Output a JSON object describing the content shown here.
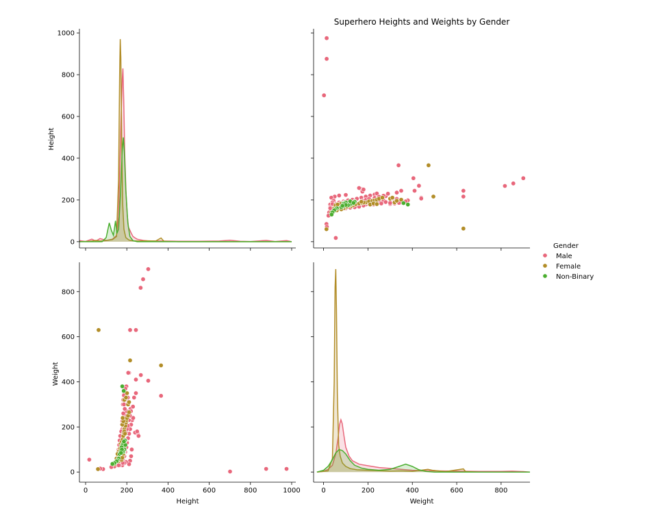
{
  "chart_data": {
    "type": "scatter",
    "title": "Superhero Heights and Weights by Gender",
    "variables": [
      "Height",
      "Weight"
    ],
    "legend": {
      "title": "Gender",
      "placement": "right",
      "entries": [
        {
          "name": "Male",
          "color": "#e8677b"
        },
        {
          "name": "Female",
          "color": "#b28d28"
        },
        {
          "name": "Non-Binary",
          "color": "#4aae2f"
        }
      ]
    },
    "axes": {
      "Height": {
        "range": [
          -30,
          1020
        ],
        "ticks": [
          0,
          200,
          400,
          600,
          800,
          1000
        ]
      },
      "Weight": {
        "range": [
          -45,
          930
        ],
        "ticks": [
          0,
          200,
          400,
          600,
          800
        ]
      }
    },
    "scatter": {
      "Male": [
        [
          185,
          200
        ],
        [
          188,
          215
        ],
        [
          178,
          190
        ],
        [
          180,
          160
        ],
        [
          191,
          210
        ],
        [
          193,
          250
        ],
        [
          170,
          130
        ],
        [
          175,
          155
        ],
        [
          183,
          185
        ],
        [
          188,
          195
        ],
        [
          196,
          220
        ],
        [
          198,
          270
        ],
        [
          203,
          300
        ],
        [
          201,
          320
        ],
        [
          205,
          330
        ],
        [
          208,
          310
        ],
        [
          213,
          260
        ],
        [
          218,
          280
        ],
        [
          226,
          230
        ],
        [
          231,
          240
        ],
        [
          235,
          330
        ],
        [
          244,
          350
        ],
        [
          244,
          410
        ],
        [
          252,
          170
        ],
        [
          257,
          160
        ],
        [
          268,
          430
        ],
        [
          211,
          440
        ],
        [
          207,
          440
        ],
        [
          198,
          380
        ],
        [
          193,
          370
        ],
        [
          188,
          350
        ],
        [
          186,
          340
        ],
        [
          183,
          320
        ],
        [
          181,
          300
        ],
        [
          183,
          260
        ],
        [
          186,
          240
        ],
        [
          178,
          225
        ],
        [
          176,
          210
        ],
        [
          173,
          180
        ],
        [
          168,
          160
        ],
        [
          165,
          140
        ],
        [
          163,
          120
        ],
        [
          160,
          100
        ],
        [
          163,
          80
        ],
        [
          168,
          60
        ],
        [
          173,
          40
        ],
        [
          178,
          30
        ],
        [
          183,
          50
        ],
        [
          188,
          70
        ],
        [
          193,
          90
        ],
        [
          198,
          110
        ],
        [
          201,
          130
        ],
        [
          206,
          150
        ],
        [
          211,
          170
        ],
        [
          216,
          190
        ],
        [
          221,
          210
        ],
        [
          224,
          100
        ],
        [
          221,
          70
        ],
        [
          216,
          50
        ],
        [
          211,
          35
        ],
        [
          196,
          45
        ],
        [
          188,
          40
        ],
        [
          180,
          40
        ],
        [
          165,
          30
        ],
        [
          160,
          30
        ],
        [
          140,
          25
        ],
        [
          125,
          22
        ],
        [
          85,
          13
        ],
        [
          71,
          15
        ],
        [
          18,
          55
        ],
        [
          216,
          630
        ],
        [
          244,
          630
        ],
        [
          267,
          817
        ],
        [
          279,
          855
        ],
        [
          304,
          900
        ],
        [
          304,
          405
        ],
        [
          366,
          338
        ],
        [
          701,
          2
        ],
        [
          876,
          14
        ],
        [
          975,
          14
        ],
        [
          185,
          80
        ],
        [
          190,
          95
        ],
        [
          175,
          110
        ],
        [
          178,
          135
        ],
        [
          182,
          150
        ],
        [
          195,
          175
        ],
        [
          200,
          190
        ],
        [
          205,
          205
        ],
        [
          210,
          230
        ],
        [
          215,
          250
        ],
        [
          220,
          270
        ],
        [
          230,
          290
        ],
        [
          240,
          175
        ],
        [
          250,
          180
        ],
        [
          190,
          280
        ],
        [
          186,
          300
        ]
      ],
      "Female": [
        [
          170,
          55
        ],
        [
          165,
          52
        ],
        [
          168,
          58
        ],
        [
          173,
          62
        ],
        [
          175,
          60
        ],
        [
          178,
          65
        ],
        [
          180,
          70
        ],
        [
          183,
          80
        ],
        [
          163,
          50
        ],
        [
          160,
          48
        ],
        [
          158,
          54
        ],
        [
          185,
          90
        ],
        [
          188,
          110
        ],
        [
          170,
          125
        ],
        [
          175,
          135
        ],
        [
          180,
          145
        ],
        [
          183,
          160
        ],
        [
          185,
          175
        ],
        [
          188,
          190
        ],
        [
          193,
          205
        ],
        [
          196,
          220
        ],
        [
          198,
          230
        ],
        [
          201,
          240
        ],
        [
          206,
          250
        ],
        [
          211,
          265
        ],
        [
          165,
          74
        ],
        [
          168,
          58
        ],
        [
          170,
          63
        ],
        [
          175,
          54
        ],
        [
          178,
          63
        ],
        [
          216,
          495
        ],
        [
          366,
          473
        ],
        [
          63,
          630
        ],
        [
          60,
          13
        ],
        [
          178,
          210
        ],
        [
          183,
          225
        ],
        [
          188,
          180
        ],
        [
          191,
          170
        ],
        [
          193,
          140
        ],
        [
          170,
          95
        ],
        [
          165,
          100
        ],
        [
          160,
          90
        ],
        [
          155,
          80
        ],
        [
          150,
          60
        ],
        [
          145,
          45
        ],
        [
          140,
          35
        ],
        [
          188,
          320
        ],
        [
          196,
          330
        ],
        [
          201,
          350
        ],
        [
          206,
          300
        ],
        [
          211,
          310
        ],
        [
          180,
          240
        ],
        [
          173,
          115
        ],
        [
          168,
          105
        ]
      ],
      "Non-Binary": [
        [
          183,
          130
        ],
        [
          185,
          360
        ],
        [
          178,
          380
        ],
        [
          183,
          90
        ],
        [
          188,
          100
        ],
        [
          180,
          120
        ],
        [
          175,
          110
        ],
        [
          170,
          90
        ],
        [
          165,
          80
        ],
        [
          160,
          60
        ],
        [
          155,
          52
        ],
        [
          150,
          48
        ],
        [
          140,
          40
        ],
        [
          130,
          36
        ],
        [
          191,
          140
        ],
        [
          193,
          120
        ],
        [
          186,
          135
        ],
        [
          181,
          95
        ],
        [
          176,
          100
        ],
        [
          172,
          85
        ]
      ]
    },
    "kde": {
      "Height": {
        "Male": [
          [
            -30,
            5
          ],
          [
            0,
            1
          ],
          [
            30,
            12
          ],
          [
            50,
            3
          ],
          [
            70,
            15
          ],
          [
            100,
            6
          ],
          [
            130,
            12
          ],
          [
            150,
            30
          ],
          [
            160,
            120
          ],
          [
            170,
            520
          ],
          [
            178,
            780
          ],
          [
            181,
            830
          ],
          [
            185,
            680
          ],
          [
            190,
            420
          ],
          [
            196,
            240
          ],
          [
            202,
            130
          ],
          [
            208,
            70
          ],
          [
            215,
            55
          ],
          [
            222,
            40
          ],
          [
            230,
            25
          ],
          [
            240,
            18
          ],
          [
            250,
            12
          ],
          [
            260,
            10
          ],
          [
            280,
            6
          ],
          [
            300,
            4
          ],
          [
            350,
            3
          ],
          [
            450,
            2
          ],
          [
            550,
            2
          ],
          [
            650,
            3
          ],
          [
            700,
            7
          ],
          [
            750,
            2
          ],
          [
            800,
            1
          ],
          [
            876,
            6
          ],
          [
            920,
            1
          ],
          [
            975,
            5
          ],
          [
            1000,
            0
          ]
        ],
        "Female": [
          [
            -30,
            0
          ],
          [
            20,
            2
          ],
          [
            50,
            6
          ],
          [
            70,
            3
          ],
          [
            100,
            5
          ],
          [
            130,
            10
          ],
          [
            150,
            25
          ],
          [
            160,
            300
          ],
          [
            165,
            800
          ],
          [
            168,
            970
          ],
          [
            171,
            880
          ],
          [
            175,
            500
          ],
          [
            180,
            180
          ],
          [
            186,
            60
          ],
          [
            195,
            20
          ],
          [
            210,
            8
          ],
          [
            230,
            4
          ],
          [
            260,
            3
          ],
          [
            300,
            4
          ],
          [
            340,
            3
          ],
          [
            366,
            18
          ],
          [
            380,
            2
          ],
          [
            450,
            0
          ],
          [
            1000,
            0
          ]
        ],
        "Non-Binary": [
          [
            -30,
            0
          ],
          [
            80,
            0
          ],
          [
            100,
            20
          ],
          [
            115,
            90
          ],
          [
            125,
            55
          ],
          [
            135,
            30
          ],
          [
            145,
            100
          ],
          [
            152,
            40
          ],
          [
            160,
            60
          ],
          [
            170,
            250
          ],
          [
            178,
            440
          ],
          [
            183,
            500
          ],
          [
            188,
            430
          ],
          [
            195,
            250
          ],
          [
            205,
            90
          ],
          [
            215,
            25
          ],
          [
            230,
            5
          ],
          [
            250,
            0
          ],
          [
            1000,
            0
          ]
        ]
      },
      "Weight": {
        "Male": [
          [
            -30,
            0
          ],
          [
            0,
            3
          ],
          [
            20,
            12
          ],
          [
            40,
            30
          ],
          [
            55,
            80
          ],
          [
            65,
            150
          ],
          [
            72,
            210
          ],
          [
            78,
            232
          ],
          [
            84,
            215
          ],
          [
            92,
            160
          ],
          [
            100,
            110
          ],
          [
            115,
            70
          ],
          [
            130,
            50
          ],
          [
            160,
            35
          ],
          [
            200,
            28
          ],
          [
            250,
            20
          ],
          [
            300,
            16
          ],
          [
            350,
            12
          ],
          [
            400,
            8
          ],
          [
            450,
            6
          ],
          [
            500,
            5
          ],
          [
            600,
            4
          ],
          [
            700,
            3
          ],
          [
            800,
            3
          ],
          [
            850,
            4
          ],
          [
            900,
            2
          ],
          [
            930,
            0
          ]
        ],
        "Female": [
          [
            -30,
            0
          ],
          [
            20,
            5
          ],
          [
            40,
            60
          ],
          [
            48,
            400
          ],
          [
            52,
            820
          ],
          [
            55,
            900
          ],
          [
            58,
            720
          ],
          [
            62,
            350
          ],
          [
            68,
            120
          ],
          [
            75,
            70
          ],
          [
            85,
            40
          ],
          [
            100,
            25
          ],
          [
            120,
            15
          ],
          [
            150,
            10
          ],
          [
            200,
            8
          ],
          [
            250,
            6
          ],
          [
            300,
            4
          ],
          [
            350,
            5
          ],
          [
            400,
            3
          ],
          [
            470,
            12
          ],
          [
            490,
            8
          ],
          [
            550,
            2
          ],
          [
            630,
            14
          ],
          [
            640,
            2
          ],
          [
            700,
            0
          ],
          [
            930,
            0
          ]
        ],
        "Non-Binary": [
          [
            -30,
            0
          ],
          [
            0,
            8
          ],
          [
            20,
            25
          ],
          [
            40,
            55
          ],
          [
            55,
            85
          ],
          [
            70,
            100
          ],
          [
            85,
            95
          ],
          [
            100,
            80
          ],
          [
            120,
            50
          ],
          [
            140,
            30
          ],
          [
            170,
            18
          ],
          [
            200,
            12
          ],
          [
            250,
            8
          ],
          [
            300,
            12
          ],
          [
            340,
            25
          ],
          [
            370,
            35
          ],
          [
            400,
            25
          ],
          [
            430,
            10
          ],
          [
            460,
            3
          ],
          [
            500,
            0
          ],
          [
            930,
            0
          ]
        ]
      }
    }
  }
}
